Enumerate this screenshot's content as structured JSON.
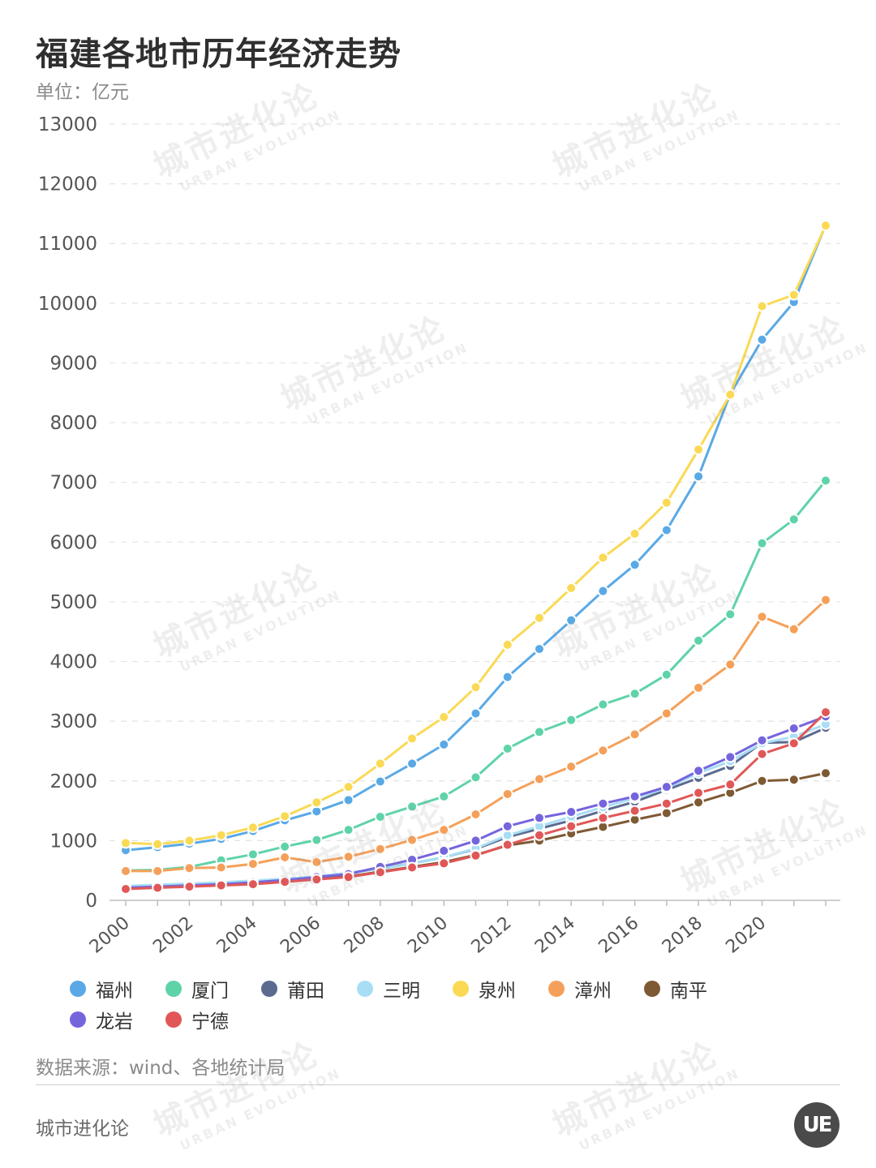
{
  "title": "福建各地市历年经济走势",
  "unit_label": "单位：亿元",
  "source_label": "数据来源：wind、各地统计局",
  "brand_label": "城市进化论",
  "logo_text": "UE",
  "watermark": {
    "cn": "城市进化论",
    "en": "URBAN EVOLUTION"
  },
  "chart_data": {
    "type": "line",
    "x": [
      2000,
      2001,
      2002,
      2003,
      2004,
      2005,
      2006,
      2007,
      2008,
      2009,
      2010,
      2011,
      2012,
      2013,
      2014,
      2015,
      2016,
      2017,
      2018,
      2019,
      2020,
      2021,
      2022
    ],
    "x_tick_labels": [
      "2000",
      "2002",
      "2004",
      "2006",
      "2008",
      "2010",
      "2012",
      "2014",
      "2016",
      "2018",
      "2020"
    ],
    "ylim": [
      0,
      13000
    ],
    "y_ticks": [
      0,
      1000,
      2000,
      3000,
      4000,
      5000,
      6000,
      7000,
      8000,
      9000,
      10000,
      11000,
      12000,
      13000
    ],
    "grid": true,
    "legend_position": "bottom",
    "series": [
      {
        "name": "福州",
        "color": "#5aa9e6",
        "values": [
          840,
          890,
          950,
          1030,
          1160,
          1340,
          1490,
          1680,
          1990,
          2290,
          2610,
          3130,
          3740,
          4210,
          4690,
          5180,
          5620,
          6200,
          7100,
          8480,
          9390,
          10020,
          11310
        ]
      },
      {
        "name": "厦门",
        "color": "#5fd3a8",
        "values": [
          500,
          510,
          560,
          670,
          770,
          900,
          1010,
          1180,
          1400,
          1570,
          1740,
          2060,
          2540,
          2820,
          3020,
          3280,
          3460,
          3780,
          4350,
          4790,
          5980,
          6380,
          7030
        ]
      },
      {
        "name": "莆田",
        "color": "#5b6b8f",
        "values": [
          230,
          250,
          270,
          290,
          320,
          350,
          390,
          460,
          530,
          620,
          720,
          860,
          1060,
          1200,
          1340,
          1500,
          1650,
          1850,
          2050,
          2250,
          2640,
          2650,
          2890
        ]
      },
      {
        "name": "三明",
        "color": "#a8def5",
        "values": [
          240,
          260,
          280,
          300,
          330,
          360,
          400,
          460,
          530,
          620,
          720,
          870,
          1090,
          1240,
          1400,
          1560,
          1710,
          1880,
          2130,
          2330,
          2630,
          2740,
          2950
        ]
      },
      {
        "name": "泉州",
        "color": "#fad955",
        "values": [
          960,
          940,
          1000,
          1090,
          1220,
          1410,
          1640,
          1900,
          2290,
          2710,
          3070,
          3570,
          4280,
          4730,
          5230,
          5740,
          6140,
          6660,
          7550,
          8470,
          9950,
          10140,
          11300
        ]
      },
      {
        "name": "漳州",
        "color": "#f5a05a",
        "values": [
          490,
          490,
          540,
          550,
          610,
          720,
          640,
          730,
          860,
          1010,
          1180,
          1440,
          1780,
          2030,
          2240,
          2510,
          2780,
          3130,
          3560,
          3950,
          4750,
          4540,
          5030
        ]
      },
      {
        "name": "南平",
        "color": "#7e5a34",
        "values": [
          200,
          220,
          240,
          260,
          280,
          320,
          360,
          400,
          480,
          560,
          640,
          760,
          920,
          1000,
          1120,
          1230,
          1350,
          1460,
          1640,
          1800,
          2000,
          2020,
          2130
        ]
      },
      {
        "name": "龙岩",
        "color": "#7565dd",
        "values": [
          210,
          230,
          250,
          270,
          300,
          340,
          390,
          440,
          560,
          680,
          830,
          1000,
          1240,
          1380,
          1480,
          1620,
          1740,
          1900,
          2170,
          2400,
          2680,
          2880,
          3080
        ]
      },
      {
        "name": "宁德",
        "color": "#e15757",
        "values": [
          190,
          210,
          230,
          250,
          270,
          310,
          350,
          390,
          470,
          550,
          620,
          750,
          930,
          1090,
          1240,
          1380,
          1500,
          1620,
          1800,
          1940,
          2450,
          2630,
          3150
        ]
      }
    ]
  }
}
